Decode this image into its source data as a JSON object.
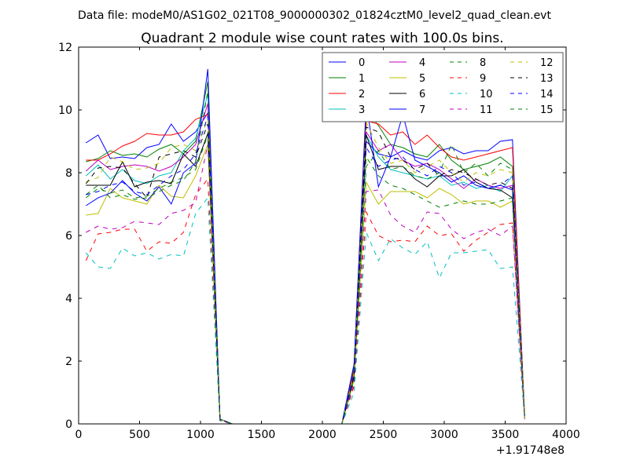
{
  "chart_data": {
    "type": "line",
    "suptitle": "Data file: modeM0/AS1G02_021T08_9000000302_01824cztM0_level2_quad_clean.evt",
    "title": "Quadrant 2 module wise count rates with 100.0s bins.",
    "xlabel": "",
    "ylabel": "",
    "x_offset_label": "+1.91748e8",
    "xlim": [
      0,
      4000
    ],
    "ylim": [
      0,
      12
    ],
    "xticks": [
      0,
      500,
      1000,
      1500,
      2000,
      2500,
      3000,
      3500,
      4000
    ],
    "yticks": [
      0,
      2,
      4,
      6,
      8,
      10,
      12
    ],
    "grid": false,
    "legend": {
      "placement": "top-right",
      "columns": 4
    },
    "x": [
      60,
      160,
      260,
      360,
      460,
      560,
      660,
      760,
      860,
      960,
      1060,
      1160,
      1260,
      1360,
      1460,
      1560,
      1660,
      1760,
      1860,
      1960,
      2060,
      2160,
      2260,
      2360,
      2460,
      2560,
      2660,
      2760,
      2860,
      2960,
      3060,
      3160,
      3260,
      3360,
      3460,
      3560,
      3660
    ],
    "series": [
      {
        "name": "0",
        "color": "#0000ff",
        "dash": "solid",
        "values": [
          8.95,
          9.2,
          8.45,
          8.5,
          8.45,
          8.8,
          8.9,
          9.55,
          9.0,
          9.3,
          9.9,
          0.15,
          0,
          0,
          0,
          0,
          0,
          0,
          0,
          0,
          0,
          0,
          1.9,
          9.0,
          8.6,
          8.5,
          8.7,
          8.5,
          8.4,
          8.7,
          8.8,
          8.6,
          8.7,
          8.7,
          9.0,
          9.05,
          0.2
        ]
      },
      {
        "name": "1",
        "color": "#008000",
        "dash": "solid",
        "values": [
          8.35,
          8.45,
          8.7,
          8.55,
          8.6,
          8.5,
          8.75,
          8.9,
          8.6,
          9.0,
          10.9,
          0.15,
          0,
          0,
          0,
          0,
          0,
          0,
          0,
          0,
          0,
          0,
          1.8,
          10.0,
          9.5,
          8.9,
          8.8,
          8.6,
          8.5,
          8.9,
          8.4,
          8.1,
          8.2,
          8.3,
          8.5,
          8.2,
          0.2
        ]
      },
      {
        "name": "2",
        "color": "#ff0000",
        "dash": "solid",
        "values": [
          8.4,
          8.4,
          8.6,
          8.85,
          9.0,
          9.25,
          9.2,
          9.2,
          9.3,
          9.7,
          9.85,
          0.15,
          0,
          0,
          0,
          0,
          0,
          0,
          0,
          0,
          0,
          0,
          1.7,
          9.65,
          9.55,
          9.2,
          9.3,
          8.9,
          9.2,
          8.8,
          8.5,
          8.4,
          8.5,
          8.6,
          8.7,
          8.8,
          0.2
        ]
      },
      {
        "name": "3",
        "color": "#00bfbf",
        "dash": "solid",
        "values": [
          7.9,
          8.25,
          7.8,
          8.1,
          7.75,
          7.65,
          7.9,
          8.0,
          8.7,
          9.1,
          10.5,
          0.15,
          0,
          0,
          0,
          0,
          0,
          0,
          0,
          0,
          0,
          0,
          1.6,
          9.2,
          8.5,
          8.1,
          8.0,
          7.9,
          7.8,
          7.9,
          7.6,
          7.7,
          7.5,
          7.6,
          7.4,
          7.9,
          0.2
        ]
      },
      {
        "name": "4",
        "color": "#bf00bf",
        "dash": "solid",
        "values": [
          8.05,
          8.4,
          8.1,
          8.2,
          8.25,
          8.2,
          8.05,
          8.2,
          8.5,
          8.9,
          10.2,
          0.15,
          0,
          0,
          0,
          0,
          0,
          0,
          0,
          0,
          0,
          0,
          1.6,
          9.3,
          8.7,
          8.9,
          8.4,
          8.2,
          8.3,
          8.1,
          7.8,
          7.5,
          7.8,
          7.6,
          7.5,
          7.6,
          0.2
        ]
      },
      {
        "name": "5",
        "color": "#bfbf00",
        "dash": "solid",
        "values": [
          6.65,
          6.7,
          7.5,
          7.2,
          7.1,
          7.0,
          7.6,
          7.25,
          7.2,
          7.9,
          8.9,
          0.15,
          0,
          0,
          0,
          0,
          0,
          0,
          0,
          0,
          0,
          0,
          1.4,
          7.7,
          7.0,
          7.4,
          7.4,
          7.4,
          7.2,
          7.5,
          7.3,
          7.0,
          7.1,
          7.1,
          6.9,
          7.1,
          0.2
        ]
      },
      {
        "name": "6",
        "color": "#000000",
        "dash": "solid",
        "values": [
          7.6,
          7.6,
          7.6,
          8.35,
          7.55,
          7.7,
          7.75,
          7.65,
          8.6,
          8.2,
          9.25,
          0.15,
          0,
          0,
          0,
          0,
          0,
          0,
          0,
          0,
          0,
          0,
          1.5,
          9.2,
          8.1,
          8.2,
          8.2,
          7.8,
          7.55,
          7.9,
          7.9,
          8.1,
          7.7,
          7.5,
          7.45,
          7.2,
          0.2
        ]
      },
      {
        "name": "7",
        "color": "#0000ff",
        "dash": "solid",
        "values": [
          6.95,
          7.2,
          7.35,
          7.75,
          7.35,
          7.1,
          7.55,
          7.0,
          8.0,
          8.3,
          11.3,
          0.15,
          0,
          0,
          0,
          0,
          0,
          0,
          0,
          0,
          0,
          0,
          1.9,
          10.25,
          7.55,
          8.5,
          9.85,
          8.4,
          8.2,
          8.0,
          7.7,
          7.9,
          7.6,
          7.5,
          7.6,
          7.45,
          0.2
        ]
      },
      {
        "name": "8",
        "color": "#008000",
        "dash": "dashed",
        "values": [
          7.3,
          7.6,
          7.2,
          7.3,
          7.15,
          7.2,
          7.4,
          7.6,
          7.75,
          8.35,
          10.6,
          0.15,
          0,
          0,
          0,
          0,
          0,
          0,
          0,
          0,
          0,
          0,
          1.5,
          8.2,
          8.7,
          8.1,
          8.2,
          7.9,
          7.8,
          8.0,
          8.9,
          8.0,
          8.3,
          7.9,
          8.3,
          8.1,
          0.2
        ]
      },
      {
        "name": "9",
        "color": "#ff0000",
        "dash": "dashed",
        "values": [
          5.2,
          6.05,
          6.1,
          6.2,
          6.2,
          5.5,
          5.8,
          5.75,
          6.1,
          7.3,
          7.8,
          0.1,
          0,
          0,
          0,
          0,
          0,
          0,
          0,
          0,
          0,
          0,
          1.2,
          6.75,
          6.0,
          5.8,
          5.85,
          5.8,
          6.3,
          6.0,
          6.05,
          5.5,
          5.85,
          6.1,
          6.35,
          6.4,
          0.15
        ]
      },
      {
        "name": "10",
        "color": "#00bfbf",
        "dash": "dashed",
        "values": [
          5.45,
          5.0,
          4.95,
          5.6,
          5.35,
          5.45,
          5.25,
          5.4,
          5.35,
          6.7,
          7.2,
          0.1,
          0,
          0,
          0,
          0,
          0,
          0,
          0,
          0,
          0,
          0,
          1.0,
          6.1,
          5.2,
          5.9,
          5.6,
          5.4,
          5.8,
          4.65,
          5.45,
          5.45,
          5.5,
          5.55,
          4.95,
          5.0,
          0.15
        ]
      },
      {
        "name": "11",
        "color": "#bf00bf",
        "dash": "dashed",
        "values": [
          6.1,
          6.3,
          6.2,
          6.25,
          6.45,
          6.4,
          6.35,
          6.7,
          6.8,
          7.05,
          8.9,
          0.12,
          0,
          0,
          0,
          0,
          0,
          0,
          0,
          0,
          0,
          0,
          1.3,
          7.4,
          7.45,
          6.65,
          6.3,
          6.1,
          6.75,
          6.7,
          6.2,
          5.9,
          6.1,
          6.2,
          6.0,
          6.3,
          0.18
        ]
      },
      {
        "name": "12",
        "color": "#bfbf00",
        "dash": "dashed",
        "values": [
          7.7,
          7.85,
          8.5,
          8.35,
          8.1,
          8.15,
          8.3,
          8.8,
          8.9,
          8.7,
          9.7,
          0.15,
          0,
          0,
          0,
          0,
          0,
          0,
          0,
          0,
          0,
          0,
          1.6,
          9.6,
          8.8,
          8.3,
          8.4,
          8.0,
          8.2,
          8.4,
          8.0,
          7.7,
          8.0,
          7.9,
          8.1,
          8.0,
          0.2
        ]
      },
      {
        "name": "13",
        "color": "#000000",
        "dash": "dashed",
        "values": [
          7.65,
          8.15,
          8.2,
          8.15,
          7.65,
          7.2,
          8.5,
          8.6,
          8.7,
          8.5,
          9.55,
          0.15,
          0,
          0,
          0,
          0,
          0,
          0,
          0,
          0,
          0,
          0,
          1.5,
          9.45,
          9.3,
          8.5,
          8.4,
          8.1,
          8.3,
          7.9,
          8.1,
          8.0,
          7.8,
          7.6,
          7.7,
          7.5,
          0.2
        ]
      },
      {
        "name": "14",
        "color": "#0000ff",
        "dash": "dashed",
        "values": [
          7.3,
          7.4,
          7.6,
          7.7,
          7.4,
          7.3,
          7.6,
          7.9,
          8.1,
          8.6,
          9.8,
          0.15,
          0,
          0,
          0,
          0,
          0,
          0,
          0,
          0,
          0,
          0,
          1.6,
          8.8,
          8.2,
          8.4,
          8.5,
          8.1,
          7.9,
          8.2,
          8.0,
          7.6,
          7.7,
          7.5,
          7.6,
          7.9,
          0.2
        ]
      },
      {
        "name": "15",
        "color": "#008000",
        "dash": "dashed",
        "values": [
          7.2,
          7.5,
          7.35,
          7.45,
          7.2,
          7.25,
          7.5,
          7.7,
          7.85,
          8.1,
          9.2,
          0.15,
          0,
          0,
          0,
          0,
          0,
          0,
          0,
          0,
          0,
          0,
          1.4,
          8.5,
          7.9,
          7.6,
          7.5,
          7.3,
          7.1,
          6.9,
          7.0,
          7.1,
          7.0,
          7.0,
          7.1,
          7.2,
          0.2
        ]
      }
    ]
  }
}
